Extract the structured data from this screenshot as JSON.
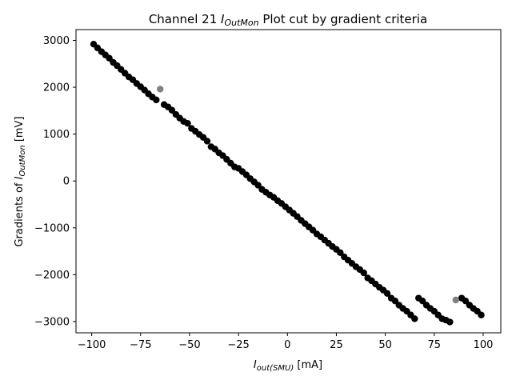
{
  "chart_data": {
    "type": "scatter",
    "title": {
      "prefix": "Channel 21 ",
      "math_main": "I",
      "math_sub": "OutMon",
      "suffix": " Plot cut by gradient criteria"
    },
    "xlabel": {
      "math_main": "I",
      "math_sub": "out(SMU)",
      "suffix": " [mA]"
    },
    "ylabel": {
      "prefix": "Gradients of ",
      "math_main": "I",
      "math_sub": "OutMon",
      "suffix": " [mV]"
    },
    "xlim": [
      -108,
      109
    ],
    "ylim": [
      -3240,
      3230
    ],
    "xticks": [
      -100,
      -75,
      -50,
      -25,
      0,
      25,
      50,
      75,
      100
    ],
    "yticks": [
      -3000,
      -2000,
      -1000,
      0,
      1000,
      2000,
      3000
    ],
    "grid": false,
    "series": [
      {
        "color": "#000000",
        "x": [
          -99,
          -97,
          -95,
          -93,
          -91,
          -89,
          -87,
          -85,
          -83,
          -81,
          -79,
          -77,
          -75,
          -73,
          -71,
          -69,
          -67,
          -63,
          -61,
          -59,
          -57,
          -55,
          -53,
          -51,
          -49,
          -47,
          -45,
          -43,
          -41,
          -39,
          -37,
          -35,
          -33,
          -31,
          -29,
          -27,
          -25,
          -23,
          -21,
          -19,
          -17,
          -15,
          -13,
          -11,
          -9,
          -7,
          -5,
          -3,
          -1,
          1,
          3,
          5,
          7,
          9,
          11,
          13,
          15,
          17,
          19,
          21,
          23,
          25,
          27,
          29,
          31,
          33,
          35,
          37,
          39,
          41,
          43,
          45,
          47,
          49,
          51,
          53,
          55,
          57,
          59,
          61,
          63,
          65,
          67,
          69,
          71,
          73,
          75,
          77,
          79,
          81,
          83,
          89,
          91,
          93,
          95,
          97,
          99
        ],
        "y": [
          2920,
          2840,
          2760,
          2690,
          2620,
          2530,
          2460,
          2380,
          2300,
          2220,
          2160,
          2080,
          2010,
          1940,
          1860,
          1790,
          1730,
          1630,
          1580,
          1510,
          1420,
          1340,
          1270,
          1230,
          1120,
          1060,
          990,
          930,
          850,
          730,
          680,
          600,
          540,
          460,
          380,
          300,
          270,
          200,
          130,
          50,
          -20,
          -90,
          -180,
          -240,
          -300,
          -350,
          -420,
          -480,
          -550,
          -620,
          -690,
          -760,
          -840,
          -910,
          -980,
          -1050,
          -1130,
          -1190,
          -1260,
          -1330,
          -1400,
          -1460,
          -1530,
          -1620,
          -1690,
          -1760,
          -1830,
          -1890,
          -1960,
          -2070,
          -2130,
          -2200,
          -2270,
          -2330,
          -2400,
          -2500,
          -2560,
          -2650,
          -2720,
          -2780,
          -2860,
          -2940,
          -2500,
          -2560,
          -2650,
          -2720,
          -2780,
          -2860,
          -2940,
          -2970,
          -3010,
          -2500,
          -2560,
          -2650,
          -2720,
          -2780,
          -2860
        ]
      },
      {
        "color": "#808080",
        "x": [
          -65,
          86
        ],
        "y": [
          1960,
          -2540
        ]
      }
    ]
  }
}
